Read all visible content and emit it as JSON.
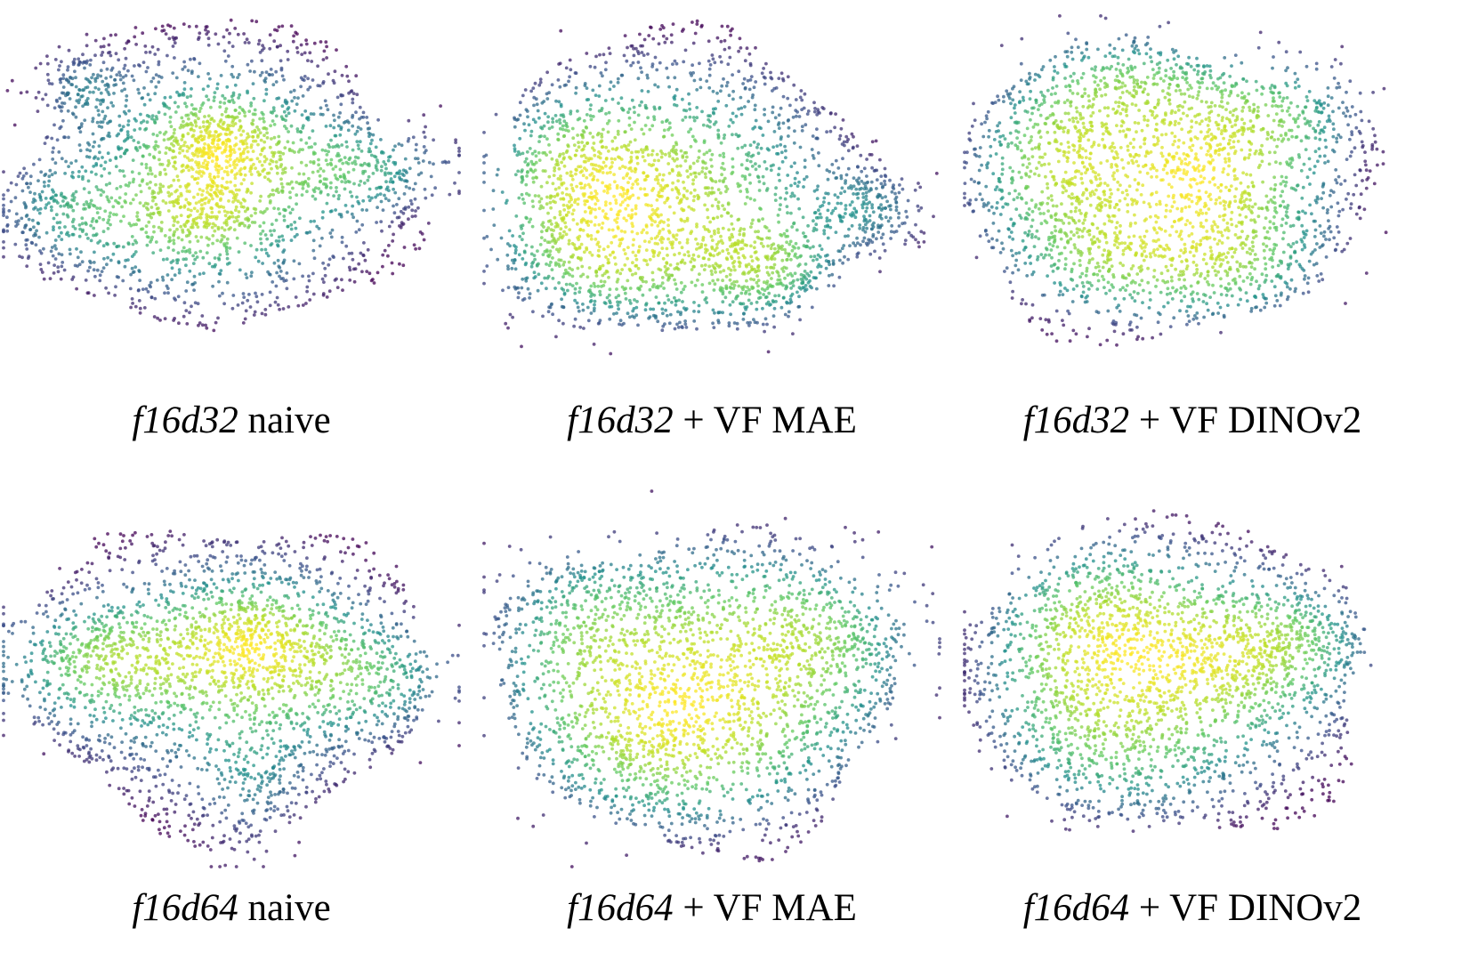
{
  "chart_data": [
    {
      "type": "scatter",
      "caption": {
        "model": "f16d32",
        "suffix": " naive"
      },
      "colormap": "viridis (density)",
      "axes": "hidden",
      "grid": false,
      "legend": "none"
    },
    {
      "type": "scatter",
      "caption": {
        "model": "f16d32",
        "suffix": " + VF MAE"
      },
      "colormap": "viridis (density)",
      "axes": "hidden",
      "grid": false,
      "legend": "none"
    },
    {
      "type": "scatter",
      "caption": {
        "model": "f16d32",
        "suffix": " + VF DINOv2"
      },
      "colormap": "viridis (density)",
      "axes": "hidden",
      "grid": false,
      "legend": "none"
    },
    {
      "type": "scatter",
      "caption": {
        "model": "f16d64",
        "suffix": " naive"
      },
      "colormap": "viridis (density)",
      "axes": "hidden",
      "grid": false,
      "legend": "none"
    },
    {
      "type": "scatter",
      "caption": {
        "model": "f16d64",
        "suffix": " + VF MAE"
      },
      "colormap": "viridis (density)",
      "axes": "hidden",
      "grid": false,
      "legend": "none"
    },
    {
      "type": "scatter",
      "caption": {
        "model": "f16d64",
        "suffix": " + VF DINOv2"
      },
      "colormap": "viridis (density)",
      "axes": "hidden",
      "grid": false,
      "legend": "none"
    }
  ],
  "colors": {
    "viridis_stops": [
      "#440154",
      "#3b528b",
      "#21918c",
      "#5ec962",
      "#b5de2b",
      "#fde725"
    ],
    "background": "#ffffff",
    "text": "#000000"
  }
}
